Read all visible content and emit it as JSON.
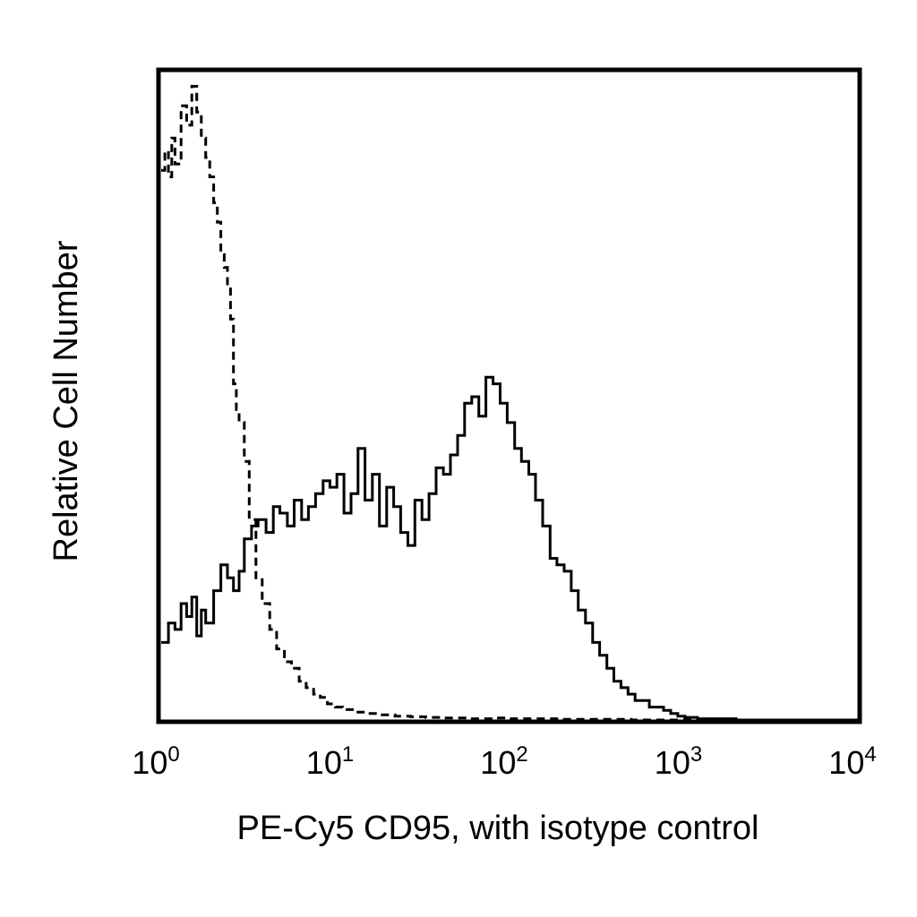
{
  "chart_data": {
    "type": "line",
    "title": "",
    "xlabel": "PE-Cy5 CD95, with isotype control",
    "ylabel": "Relative Cell Number",
    "x_scale": "log",
    "xlim": [
      1,
      10000
    ],
    "ylim": [
      0,
      100
    ],
    "x_ticks": [
      {
        "value": 1,
        "base": "10",
        "exp": "0"
      },
      {
        "value": 10,
        "base": "10",
        "exp": "1"
      },
      {
        "value": 100,
        "base": "10",
        "exp": "2"
      },
      {
        "value": 1000,
        "base": "10",
        "exp": "3"
      },
      {
        "value": 10000,
        "base": "10",
        "exp": "4"
      }
    ],
    "grid": false,
    "legend": "none",
    "series": [
      {
        "style": "solid",
        "color": "#000000",
        "x": [
          1.0,
          1.1,
          1.2,
          1.3,
          1.4,
          1.5,
          1.6,
          1.7,
          1.8,
          2.0,
          2.2,
          2.4,
          2.6,
          2.8,
          3.0,
          3.3,
          3.6,
          4.0,
          4.4,
          4.8,
          5.3,
          5.8,
          6.4,
          7.0,
          7.7,
          8.5,
          9.3,
          10.2,
          11.2,
          12.3,
          13.5,
          14.8,
          16.3,
          17.9,
          19.7,
          21.6,
          23.7,
          26.1,
          28.6,
          31.4,
          34.5,
          37.9,
          41.7,
          45.8,
          50.3,
          55.2,
          60.7,
          66.6,
          73.2,
          80.4,
          88.3,
          97.0,
          107,
          117,
          129,
          141,
          155,
          171,
          187,
          206,
          226,
          248,
          273,
          300,
          329,
          362,
          397,
          436,
          479,
          526,
          578,
          635,
          698,
          766,
          842,
          925,
          1016,
          1200,
          2000,
          5000,
          10000
        ],
        "y": [
          12,
          15,
          14,
          18,
          16,
          19,
          13,
          17,
          15,
          20,
          24,
          22,
          20,
          23,
          28,
          30,
          31,
          29,
          33,
          32,
          30,
          34,
          31,
          33,
          35,
          37,
          36,
          38,
          32,
          35,
          42,
          34,
          38,
          30,
          36,
          33,
          29,
          27,
          34,
          31,
          35,
          39,
          38,
          41,
          44,
          49,
          50,
          47,
          53,
          52,
          49,
          46,
          42,
          40,
          38,
          34,
          30,
          25,
          24,
          23,
          20,
          17,
          15,
          12,
          10,
          8,
          6,
          5,
          4,
          3,
          3,
          2,
          2,
          1.5,
          1,
          0.6,
          0.4,
          0.2,
          0,
          0,
          0
        ]
      },
      {
        "style": "dashed",
        "color": "#000000",
        "x": [
          1.0,
          1.05,
          1.1,
          1.15,
          1.2,
          1.3,
          1.4,
          1.5,
          1.6,
          1.7,
          1.8,
          1.9,
          2.0,
          2.1,
          2.2,
          2.3,
          2.4,
          2.5,
          2.6,
          2.7,
          2.8,
          3.0,
          3.2,
          3.5,
          3.8,
          4.2,
          4.6,
          5.1,
          5.6,
          6.2,
          6.8,
          7.5,
          8.2,
          9.0,
          10.0,
          11,
          13,
          15,
          18,
          22,
          27,
          33,
          40,
          50,
          60,
          80,
          100,
          150,
          200,
          300,
          500,
          1000,
          10000
        ],
        "y": [
          85,
          88,
          84,
          90,
          86,
          95,
          92,
          98,
          94,
          90,
          87,
          84,
          80,
          77,
          72,
          70,
          67,
          62,
          52,
          48,
          46,
          40,
          31,
          22,
          18,
          14,
          11,
          9,
          8,
          6,
          5,
          4,
          3.5,
          2.5,
          2,
          1.6,
          1.2,
          1.0,
          0.8,
          0.6,
          0.5,
          0.4,
          0.3,
          0.3,
          0.2,
          0.3,
          0.2,
          0.2,
          0.1,
          0.1,
          0,
          0,
          0
        ]
      }
    ]
  }
}
